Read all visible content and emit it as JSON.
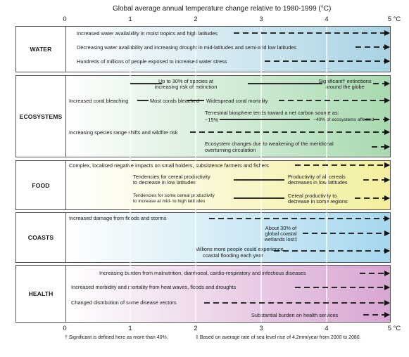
{
  "title": "Global average annual temperature change relative to 1980-1999 (°C)",
  "axis_ticks_top": [
    "0",
    "1",
    "2",
    "3",
    "4",
    "5 °C"
  ],
  "axis_ticks_bottom": [
    "0",
    "1",
    "2",
    "3",
    "4",
    "5 °C"
  ],
  "colors": {
    "water": [
      "#ffffff",
      "#a9d3e4"
    ],
    "ecosystems": [
      "#ffffff",
      "#a8d9b0"
    ],
    "food": [
      "#ffffff",
      "#f3ef9e"
    ],
    "coasts": [
      "#ffffff",
      "#a6d7ee"
    ],
    "health": [
      "#ffffff",
      "#d8a6d2"
    ]
  },
  "panels": [
    {
      "id": "water",
      "label": "WATER",
      "items": [
        "Increased water availability in moist tropics and high latitudes",
        "Decreasing water availability and increasing drought in mid-latitudes and semi-arid low latitudes",
        "Hundreds of millions of people exposed to increased water stress"
      ]
    },
    {
      "id": "ecosystems",
      "label": "ECOSYSTEMS",
      "items": [
        "Up to 30% of species at",
        "increasing risk of extinction",
        "Significant† extinctions",
        "around the globe",
        "Increased coral bleaching",
        "Most corals bleached",
        "Widespread coral mortality",
        "Terrestrial biosphere tends toward a net carbon source as:",
        "~15%",
        "~40% of ecosystems affected",
        "Increasing species range shifts and wildfire risk",
        "Ecosystem changes due to weakening of the meridional",
        "overturning circulation"
      ]
    },
    {
      "id": "food",
      "label": "FOOD",
      "items": [
        "Complex, localised negative impacts on small holders, subsistence farmers and fishers",
        "Tendencies for cereal productivity",
        "to decrease in low latitudes",
        "Productivity of all cereals",
        "decreases in low latitudes",
        "Tendencies for some cereal productivity",
        "to increase at mid- to high latitudes",
        "Cereal productivity to",
        "decrease in some regions"
      ]
    },
    {
      "id": "coasts",
      "label": "COASTS",
      "items": [
        "Increased damage from floods and storms",
        "About 30% of",
        "global coastal",
        "wetlands lost‡",
        "Millions more people could experience",
        "coastal flooding each year"
      ]
    },
    {
      "id": "health",
      "label": "HEALTH",
      "items": [
        "Increasing burden from malnutrition, diarrhoeal, cardio-respiratory and infectious diseases",
        "Increased morbidity and mortality from heat waves, floods and droughts",
        "Changed distribution of some disease vectors",
        "Substantial burden on health services"
      ]
    }
  ],
  "footnotes": [
    "† Significant is defined here as more than 40%.",
    "‡ Based on average rate of sea level rise of 4.2mm/year from 2000 to 2080."
  ]
}
